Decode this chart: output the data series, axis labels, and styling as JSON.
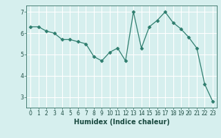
{
  "x": [
    0,
    1,
    2,
    3,
    4,
    5,
    6,
    7,
    8,
    9,
    10,
    11,
    12,
    13,
    14,
    15,
    16,
    17,
    18,
    19,
    20,
    21,
    22,
    23
  ],
  "y": [
    6.3,
    6.3,
    6.1,
    6.0,
    5.7,
    5.7,
    5.6,
    5.5,
    4.9,
    4.7,
    5.1,
    5.3,
    4.7,
    7.0,
    5.3,
    6.3,
    6.6,
    7.0,
    6.5,
    6.2,
    5.8,
    5.3,
    3.6,
    2.8
  ],
  "line_color": "#2e7d6e",
  "marker": "D",
  "marker_size": 2.5,
  "xlabel": "Humidex (Indice chaleur)",
  "xlim": [
    -0.5,
    23.5
  ],
  "ylim": [
    2.5,
    7.3
  ],
  "yticks": [
    3,
    4,
    5,
    6,
    7
  ],
  "xticks": [
    0,
    1,
    2,
    3,
    4,
    5,
    6,
    7,
    8,
    9,
    10,
    11,
    12,
    13,
    14,
    15,
    16,
    17,
    18,
    19,
    20,
    21,
    22,
    23
  ],
  "bg_color": "#d6efee",
  "grid_color": "#ffffff",
  "tick_color": "#2e6b5e",
  "label_color": "#1a4a40",
  "font_size": 5.5,
  "xlabel_fontsize": 7
}
